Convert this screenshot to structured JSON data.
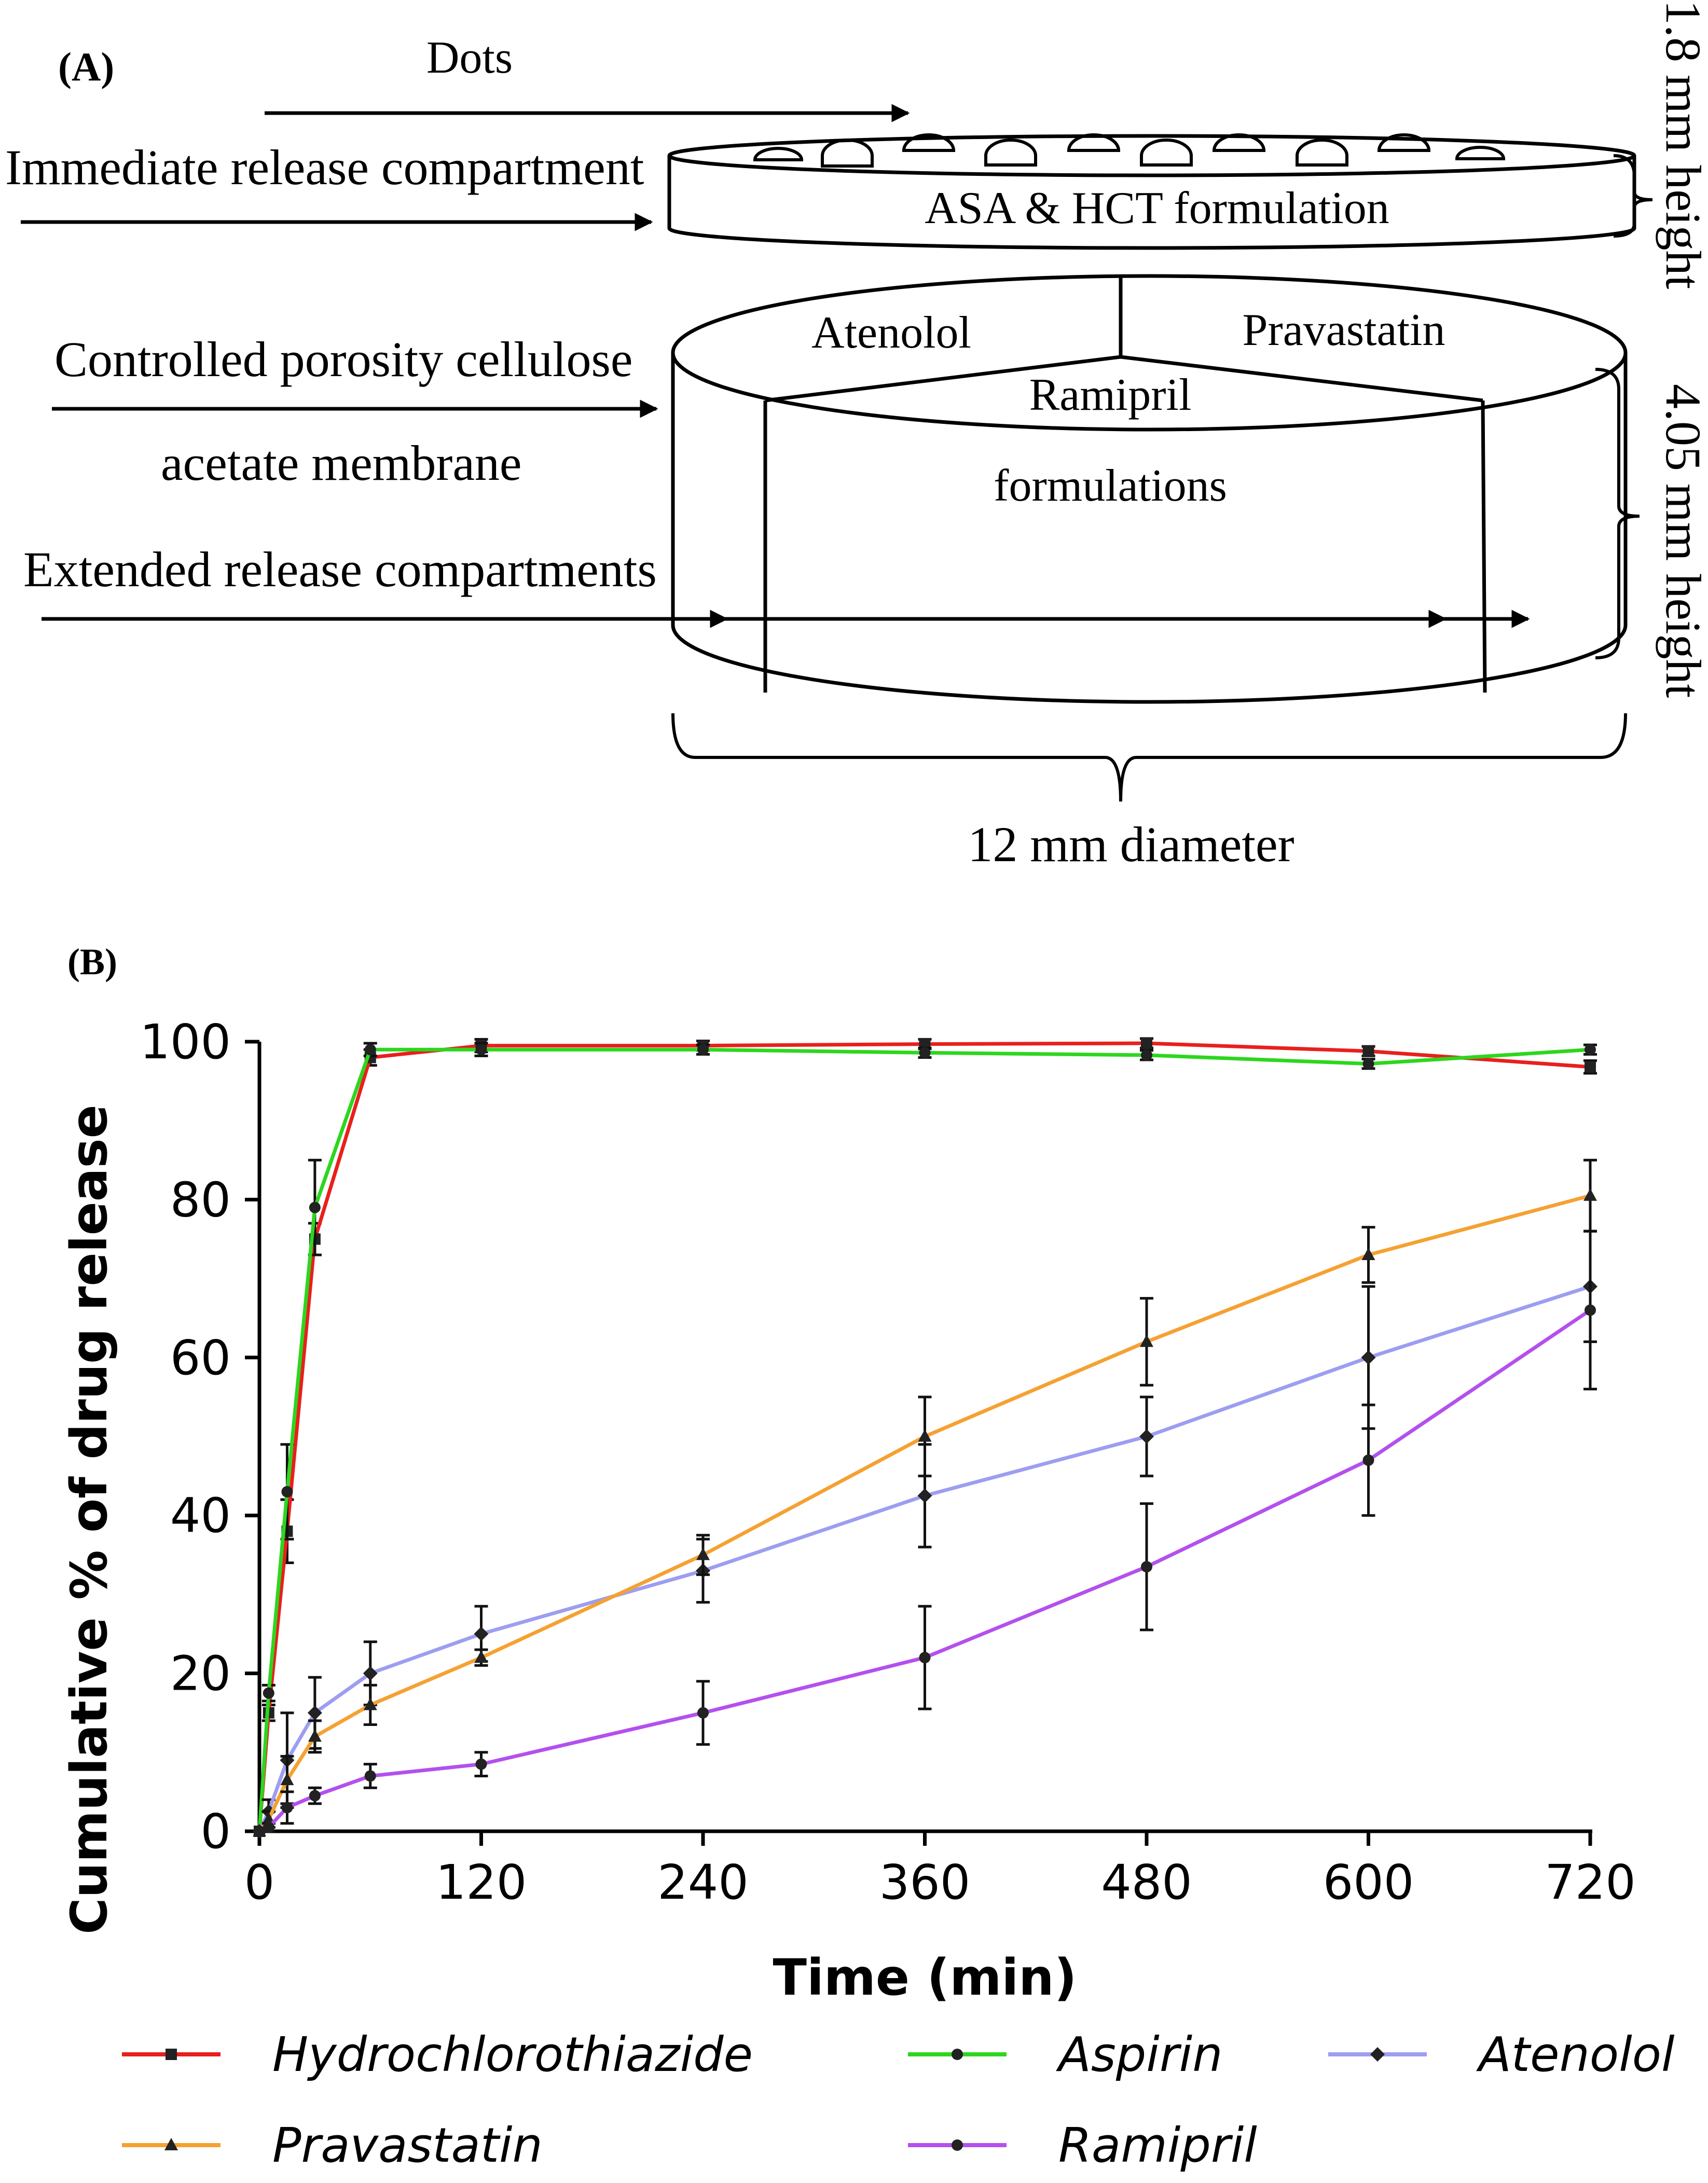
{
  "panel_a": {
    "label": "(A)",
    "dots_label": "Dots",
    "immediate_label": "Immediate release compartment",
    "top_formulation": "ASA & HCT formulation",
    "membrane_label_line1": "Controlled porosity cellulose",
    "membrane_label_line2": "acetate membrane",
    "extended_label": "Extended release compartments",
    "compartment_atenolol": "Atenolol",
    "compartment_pravastatin": "Pravastatin",
    "compartment_ramipril": "Ramipril",
    "formulations_label": "formulations",
    "diameter_label": "12 mm diameter",
    "height_top_label": "1.8 mm height",
    "height_bottom_label": "4.05 mm height"
  },
  "panel_b": {
    "label": "(B)"
  },
  "chart_data": {
    "type": "line",
    "title": "",
    "xlabel": "Time (min)",
    "ylabel": "Cumulative % of drug release",
    "xlim": [
      0,
      720
    ],
    "ylim": [
      0,
      100
    ],
    "xticks": [
      0,
      120,
      240,
      360,
      480,
      600,
      720
    ],
    "yticks": [
      0,
      20,
      40,
      60,
      80,
      100
    ],
    "grid": false,
    "legend_position": "bottom",
    "series": [
      {
        "name": "Hydrochlorothiazide",
        "color": "#e8201c",
        "marker": "square",
        "x": [
          0,
          5,
          15,
          30,
          60,
          120,
          240,
          360,
          480,
          600,
          720
        ],
        "y": [
          0,
          15,
          38,
          75,
          98,
          99.5,
          99.5,
          99.7,
          99.8,
          98.8,
          96.8
        ],
        "err": [
          0,
          1,
          4,
          2,
          1,
          0.8,
          0.6,
          0.6,
          0.6,
          0.6,
          0.8
        ]
      },
      {
        "name": "Aspirin",
        "color": "#2dd61e",
        "marker": "circle",
        "x": [
          0,
          5,
          15,
          30,
          60,
          120,
          240,
          360,
          480,
          600,
          720
        ],
        "y": [
          0,
          17.5,
          43,
          79,
          99,
          99,
          99,
          98.6,
          98.3,
          97.2,
          99
        ],
        "err": [
          0,
          1,
          6,
          6,
          0.8,
          0.8,
          0.6,
          0.6,
          0.6,
          0.6,
          0.6
        ]
      },
      {
        "name": "Atenolol",
        "color": "#9d9ef0",
        "marker": "diamond",
        "x": [
          0,
          5,
          15,
          30,
          60,
          120,
          240,
          360,
          480,
          600,
          720
        ],
        "y": [
          0,
          2.5,
          9,
          15,
          20,
          25,
          33,
          42.5,
          50,
          60,
          69
        ],
        "err": [
          0,
          1.5,
          6,
          4.5,
          4,
          3.5,
          4,
          6.5,
          5,
          9,
          7
        ]
      },
      {
        "name": "Pravastatin",
        "color": "#f5a132",
        "marker": "triangle",
        "x": [
          0,
          5,
          15,
          30,
          60,
          120,
          240,
          360,
          480,
          600,
          720
        ],
        "y": [
          0,
          1.5,
          6.5,
          12,
          16,
          22,
          35,
          50,
          62,
          73,
          80.5
        ],
        "err": [
          0,
          1,
          3,
          2,
          2.5,
          1,
          2.5,
          5,
          5.5,
          3.5,
          4.5
        ]
      },
      {
        "name": "Ramipril",
        "color": "#b350ee",
        "marker": "circle",
        "x": [
          0,
          5,
          15,
          30,
          60,
          120,
          240,
          360,
          480,
          600,
          720
        ],
        "y": [
          0,
          0.5,
          3,
          4.5,
          7,
          8.5,
          15,
          22,
          33.5,
          47,
          66
        ],
        "err": [
          0,
          0.5,
          2,
          1,
          1.5,
          1.5,
          4,
          6.5,
          8,
          7,
          10
        ]
      }
    ]
  }
}
